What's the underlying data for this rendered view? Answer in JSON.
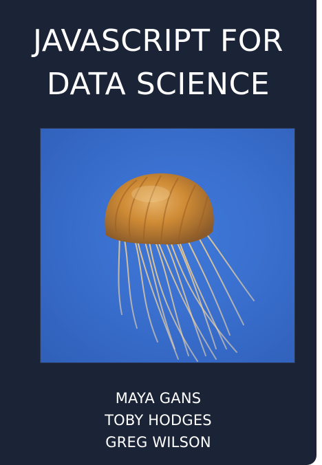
{
  "cover": {
    "title_line_1": "JAVASCRIPT FOR",
    "title_line_2": "DATA SCIENCE",
    "authors": [
      "MAYA GANS",
      "TOBY HODGES",
      "GREG WILSON"
    ],
    "colors": {
      "background": "#1b2336",
      "photo_blue": "#3a6fce",
      "jellyfish_orange": "#d38a2e",
      "text": "#ffffff"
    }
  }
}
